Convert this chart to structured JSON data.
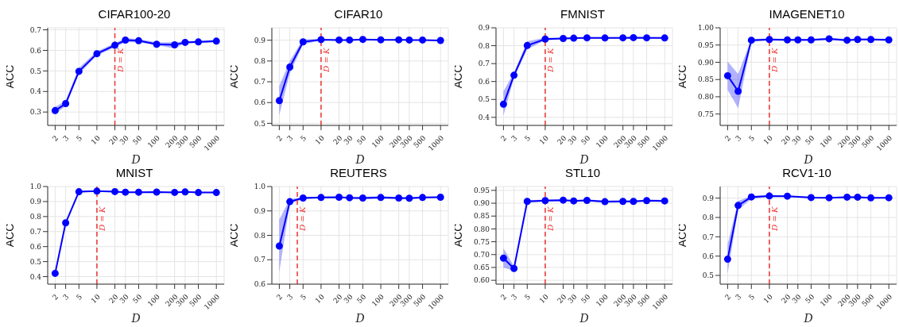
{
  "chart_data": [
    {
      "type": "line",
      "title": "CIFAR100-20",
      "xlabel": "D",
      "ylabel": "ACC",
      "x": [
        2,
        3,
        5,
        10,
        20,
        30,
        50,
        100,
        200,
        300,
        500,
        1000
      ],
      "log": "x",
      "xlim": [
        1.5,
        1350
      ],
      "xticks": [
        2,
        3,
        5,
        10,
        20,
        30,
        50,
        100,
        200,
        300,
        500,
        1000
      ],
      "ylim": [
        0.235,
        0.71
      ],
      "yticks": [
        0.3,
        0.4,
        0.5,
        0.6,
        0.7
      ],
      "grid": true,
      "marker": "circle",
      "series": [
        {
          "color": "#0000ff",
          "values": [
            0.307,
            0.341,
            0.498,
            0.584,
            0.625,
            0.65,
            0.647,
            0.63,
            0.627,
            0.639,
            0.641,
            0.645
          ],
          "lower": [
            0.29,
            0.33,
            0.485,
            0.575,
            0.615,
            0.64,
            0.64,
            0.625,
            0.61,
            0.635,
            0.636,
            0.64
          ],
          "upper": [
            0.325,
            0.355,
            0.515,
            0.595,
            0.635,
            0.66,
            0.655,
            0.64,
            0.64,
            0.645,
            0.647,
            0.652
          ]
        }
      ],
      "ref_lines": [
        {
          "axis": "x",
          "value": 20,
          "label": "D = K",
          "color": "#ee3333",
          "line_style": "dashed"
        }
      ]
    },
    {
      "type": "line",
      "title": "CIFAR10",
      "xlabel": "D",
      "ylabel": "ACC",
      "x": [
        2,
        3,
        5,
        10,
        20,
        30,
        50,
        100,
        200,
        300,
        500,
        1000
      ],
      "log": "x",
      "xlim": [
        1.5,
        1350
      ],
      "xticks": [
        2,
        3,
        5,
        10,
        20,
        30,
        50,
        100,
        200,
        300,
        500,
        1000
      ],
      "ylim": [
        0.49,
        0.96
      ],
      "yticks": [
        0.5,
        0.6,
        0.7,
        0.8,
        0.9
      ],
      "grid": true,
      "marker": "circle",
      "series": [
        {
          "color": "#0000ff",
          "values": [
            0.609,
            0.771,
            0.892,
            0.903,
            0.901,
            0.901,
            0.904,
            0.902,
            0.902,
            0.901,
            0.901,
            0.899
          ],
          "lower": [
            0.54,
            0.74,
            0.88,
            0.9,
            0.898,
            0.898,
            0.9,
            0.9,
            0.9,
            0.899,
            0.899,
            0.897
          ],
          "upper": [
            0.68,
            0.8,
            0.905,
            0.906,
            0.904,
            0.904,
            0.907,
            0.905,
            0.905,
            0.904,
            0.904,
            0.902
          ]
        }
      ],
      "ref_lines": [
        {
          "axis": "x",
          "value": 10,
          "label": "D = K",
          "color": "#ee3333",
          "line_style": "dashed"
        }
      ]
    },
    {
      "type": "line",
      "title": "FMNIST",
      "xlabel": "D",
      "ylabel": "ACC",
      "x": [
        2,
        3,
        5,
        10,
        20,
        30,
        50,
        100,
        200,
        300,
        500,
        1000
      ],
      "log": "x",
      "xlim": [
        1.5,
        1350
      ],
      "xticks": [
        2,
        3,
        5,
        10,
        20,
        30,
        50,
        100,
        200,
        300,
        500,
        1000
      ],
      "ylim": [
        0.355,
        0.9
      ],
      "yticks": [
        0.4,
        0.5,
        0.6,
        0.7,
        0.8,
        0.9
      ],
      "grid": true,
      "marker": "circle",
      "series": [
        {
          "color": "#0000ff",
          "values": [
            0.473,
            0.635,
            0.801,
            0.837,
            0.84,
            0.842,
            0.844,
            0.843,
            0.844,
            0.845,
            0.844,
            0.843
          ],
          "lower": [
            0.41,
            0.62,
            0.78,
            0.83,
            0.835,
            0.838,
            0.84,
            0.839,
            0.84,
            0.841,
            0.84,
            0.839
          ],
          "upper": [
            0.545,
            0.65,
            0.825,
            0.845,
            0.845,
            0.846,
            0.848,
            0.847,
            0.848,
            0.849,
            0.848,
            0.847
          ]
        }
      ],
      "ref_lines": [
        {
          "axis": "x",
          "value": 10,
          "label": "D = K",
          "color": "#ee3333",
          "line_style": "dashed"
        }
      ]
    },
    {
      "type": "line",
      "title": "IMAGENET10",
      "xlabel": "D",
      "ylabel": "ACC",
      "x": [
        2,
        3,
        5,
        10,
        20,
        30,
        50,
        100,
        200,
        300,
        500,
        1000
      ],
      "log": "x",
      "xlim": [
        1.5,
        1350
      ],
      "xticks": [
        2,
        3,
        5,
        10,
        20,
        30,
        50,
        100,
        200,
        300,
        500,
        1000
      ],
      "ylim": [
        0.717,
        1.0
      ],
      "yticks": [
        0.75,
        {
          "value": 0.8,
          "label": "0.80"
        },
        0.85,
        {
          "value": 0.9,
          "label": "0.90"
        },
        0.95,
        {
          "value": 1,
          "label": "1.00"
        }
      ],
      "grid": true,
      "marker": "circle",
      "series": [
        {
          "color": "#0000ff",
          "values": [
            0.861,
            0.816,
            0.964,
            0.966,
            0.965,
            0.965,
            0.965,
            0.968,
            0.964,
            0.966,
            0.966,
            0.965
          ],
          "lower": [
            0.82,
            0.767,
            0.96,
            0.963,
            0.962,
            0.962,
            0.962,
            0.965,
            0.961,
            0.963,
            0.963,
            0.962
          ],
          "upper": [
            0.902,
            0.866,
            0.968,
            0.969,
            0.968,
            0.968,
            0.968,
            0.971,
            0.967,
            0.969,
            0.969,
            0.968
          ]
        }
      ],
      "ref_lines": [
        {
          "axis": "x",
          "value": 10,
          "label": "D = K",
          "color": "#ee3333",
          "line_style": "dashed"
        }
      ]
    },
    {
      "type": "line",
      "title": "MNIST",
      "xlabel": "D",
      "ylabel": "ACC",
      "x": [
        2,
        3,
        5,
        10,
        20,
        30,
        50,
        100,
        200,
        300,
        500,
        1000
      ],
      "log": "x",
      "xlim": [
        1.5,
        1350
      ],
      "xticks": [
        2,
        3,
        5,
        10,
        20,
        30,
        50,
        100,
        200,
        300,
        500,
        1000
      ],
      "ylim": [
        0.35,
        1.0
      ],
      "yticks": [
        0.4,
        0.5,
        0.6,
        0.7,
        0.8,
        0.9,
        {
          "value": 1,
          "label": "1.0"
        }
      ],
      "grid": true,
      "marker": "circle",
      "series": [
        {
          "color": "#0000ff",
          "values": [
            0.422,
            0.758,
            0.965,
            0.969,
            0.966,
            0.962,
            0.962,
            0.963,
            0.961,
            0.964,
            0.96,
            0.96
          ],
          "lower": [
            0.418,
            0.752,
            0.961,
            0.965,
            0.962,
            0.958,
            0.958,
            0.959,
            0.957,
            0.96,
            0.956,
            0.956
          ],
          "upper": [
            0.426,
            0.764,
            0.969,
            0.973,
            0.97,
            0.966,
            0.966,
            0.967,
            0.965,
            0.968,
            0.964,
            0.964
          ]
        }
      ],
      "ref_lines": [
        {
          "axis": "x",
          "value": 10,
          "label": "D = K",
          "color": "#ee3333",
          "line_style": "dashed"
        }
      ]
    },
    {
      "type": "line",
      "title": "REUTERS",
      "xlabel": "D",
      "ylabel": "ACC",
      "x": [
        2,
        3,
        5,
        10,
        20,
        30,
        50,
        100,
        200,
        300,
        500,
        1000
      ],
      "log": "x",
      "xlim": [
        1.5,
        1350
      ],
      "xticks": [
        2,
        3,
        5,
        10,
        20,
        30,
        50,
        100,
        200,
        300,
        500,
        1000
      ],
      "ylim": [
        0.6,
        1.0
      ],
      "yticks": [
        0.6,
        0.7,
        0.8,
        0.9,
        {
          "value": 1,
          "label": "1.0"
        }
      ],
      "grid": true,
      "marker": "circle",
      "series": [
        {
          "color": "#0000ff",
          "values": [
            0.756,
            0.938,
            0.953,
            0.955,
            0.956,
            0.954,
            0.953,
            0.955,
            0.953,
            0.952,
            0.955,
            0.956
          ],
          "lower": [
            0.65,
            0.93,
            0.948,
            0.951,
            0.953,
            0.95,
            0.948,
            0.949,
            0.949,
            0.948,
            0.951,
            0.953
          ],
          "upper": [
            0.865,
            0.948,
            0.957,
            0.958,
            0.959,
            0.957,
            0.958,
            0.96,
            0.957,
            0.956,
            0.958,
            0.959
          ]
        }
      ],
      "ref_lines": [
        {
          "axis": "x",
          "value": 4,
          "label": "D = K",
          "color": "#ee3333",
          "line_style": "dashed"
        }
      ]
    },
    {
      "type": "line",
      "title": "STL10",
      "xlabel": "D",
      "ylabel": "ACC",
      "x": [
        2,
        3,
        5,
        10,
        20,
        30,
        50,
        100,
        200,
        300,
        500,
        1000
      ],
      "log": "x",
      "xlim": [
        1.5,
        1350
      ],
      "xticks": [
        2,
        3,
        5,
        10,
        20,
        30,
        50,
        100,
        200,
        300,
        500,
        1000
      ],
      "ylim": [
        0.585,
        0.965
      ],
      "yticks": [
        {
          "value": 0.6,
          "label": "0.60"
        },
        0.65,
        {
          "value": 0.7,
          "label": "0.70"
        },
        0.75,
        {
          "value": 0.8,
          "label": "0.80"
        },
        0.85,
        {
          "value": 0.9,
          "label": "0.90"
        },
        0.95
      ],
      "grid": true,
      "marker": "circle",
      "series": [
        {
          "color": "#0000ff",
          "values": [
            0.686,
            0.646,
            0.907,
            0.91,
            0.912,
            0.909,
            0.911,
            0.906,
            0.907,
            0.907,
            0.91,
            0.909
          ],
          "lower": [
            0.65,
            0.637,
            0.902,
            0.906,
            0.908,
            0.906,
            0.907,
            0.902,
            0.903,
            0.903,
            0.906,
            0.905
          ],
          "upper": [
            0.725,
            0.655,
            0.912,
            0.914,
            0.916,
            0.913,
            0.915,
            0.91,
            0.911,
            0.911,
            0.914,
            0.913
          ]
        }
      ],
      "ref_lines": [
        {
          "axis": "x",
          "value": 10,
          "label": "D = K",
          "color": "#ee3333",
          "line_style": "dashed"
        }
      ]
    },
    {
      "type": "line",
      "title": "RCV1-10",
      "xlabel": "D",
      "ylabel": "ACC",
      "x": [
        2,
        3,
        5,
        10,
        20,
        50,
        100,
        200,
        300,
        500,
        1000
      ],
      "log": "x",
      "xlim": [
        1.5,
        1350
      ],
      "xticks": [
        2,
        3,
        5,
        10,
        20,
        30,
        50,
        100,
        200,
        300,
        500,
        1000
      ],
      "ylim": [
        0.455,
        0.96
      ],
      "yticks": [
        0.5,
        0.6,
        0.7,
        0.8,
        0.9
      ],
      "grid": true,
      "marker": "circle",
      "series": [
        {
          "color": "#0000ff",
          "values": [
            0.584,
            0.862,
            0.906,
            0.911,
            0.91,
            0.903,
            0.902,
            0.905,
            0.905,
            0.901,
            0.902
          ],
          "lower": [
            0.51,
            0.84,
            0.895,
            0.907,
            0.907,
            0.9,
            0.899,
            0.9,
            0.9,
            0.897,
            0.899
          ],
          "upper": [
            0.66,
            0.885,
            0.912,
            0.915,
            0.914,
            0.906,
            0.905,
            0.91,
            0.91,
            0.905,
            0.905
          ]
        }
      ],
      "ref_lines": [
        {
          "axis": "x",
          "value": 10,
          "label": "D = K",
          "color": "#ee3333",
          "line_style": "dashed"
        }
      ]
    }
  ]
}
